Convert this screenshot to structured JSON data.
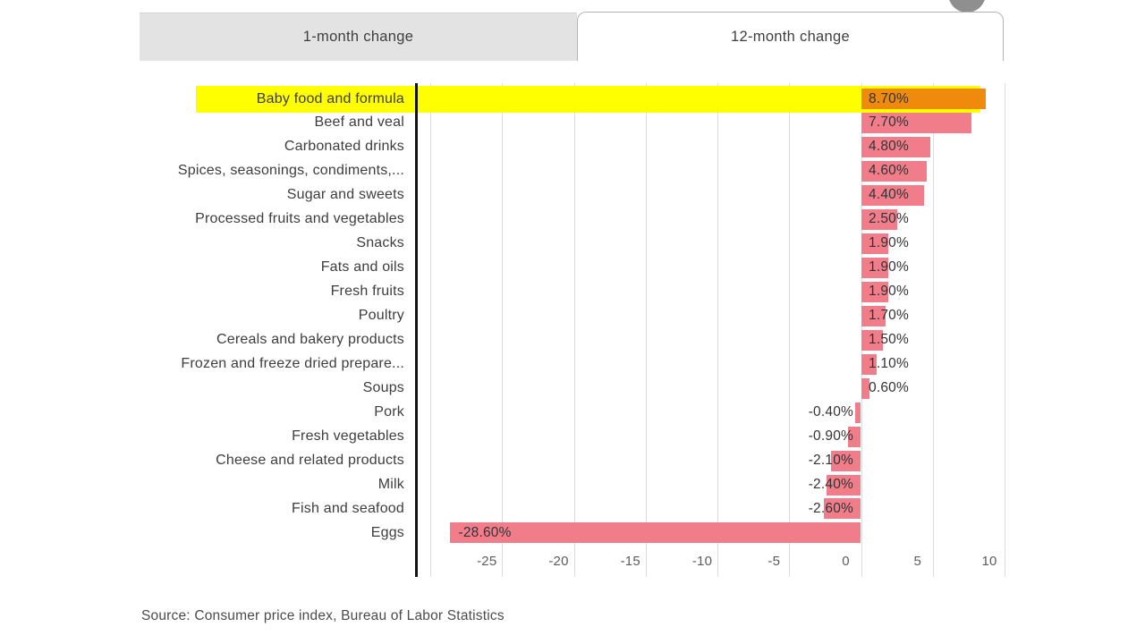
{
  "tabs": {
    "items": [
      {
        "label": "1-month change",
        "active": false
      },
      {
        "label": "12-month change",
        "active": true
      }
    ]
  },
  "chart_data": {
    "type": "bar",
    "orientation": "horizontal",
    "unit": "percent",
    "categories": [
      "Baby food and formula",
      "Beef and veal",
      "Carbonated drinks",
      "Spices, seasonings, condiments,...",
      "Sugar and sweets",
      "Processed fruits and vegetables",
      "Snacks",
      "Fats and oils",
      "Fresh fruits",
      "Poultry",
      "Cereals and bakery products",
      "Frozen and freeze dried prepare...",
      "Soups",
      "Pork",
      "Fresh vegetables",
      "Cheese and related products",
      "Milk",
      "Fish and seafood",
      "Eggs"
    ],
    "values": [
      8.7,
      7.7,
      4.8,
      4.6,
      4.4,
      2.5,
      1.9,
      1.9,
      1.9,
      1.7,
      1.5,
      1.1,
      0.6,
      -0.4,
      -0.9,
      -2.1,
      -2.4,
      -2.6,
      -28.6
    ],
    "value_labels": [
      "8.70%",
      "7.70%",
      "4.80%",
      "4.60%",
      "4.40%",
      "2.50%",
      "1.90%",
      "1.90%",
      "1.90%",
      "1.70%",
      "1.50%",
      "1.10%",
      "0.60%",
      "-0.40%",
      "-0.90%",
      "-2.10%",
      "-2.40%",
      "-2.60%",
      "-28.60%"
    ],
    "x_ticks": [
      -25,
      -20,
      -15,
      -10,
      -5,
      0,
      5,
      10
    ],
    "x_gridlines": [
      -30,
      -25,
      -20,
      -15,
      -10,
      -5,
      0,
      5,
      10
    ],
    "xlim": [
      -31,
      10
    ],
    "grid": "vertical",
    "legend": "none",
    "highlight": {
      "category": "Baby food and formula",
      "band_color": "#FFFF00",
      "bar_color": "#EF8A0C"
    },
    "colors": {
      "bar": "#F27D8A",
      "gridline": "#DCDCDC",
      "axis": "#141414",
      "label_text": "#3D3D3D"
    }
  },
  "source": {
    "text": "Source: Consumer price index, Bureau of Labor Statistics"
  }
}
